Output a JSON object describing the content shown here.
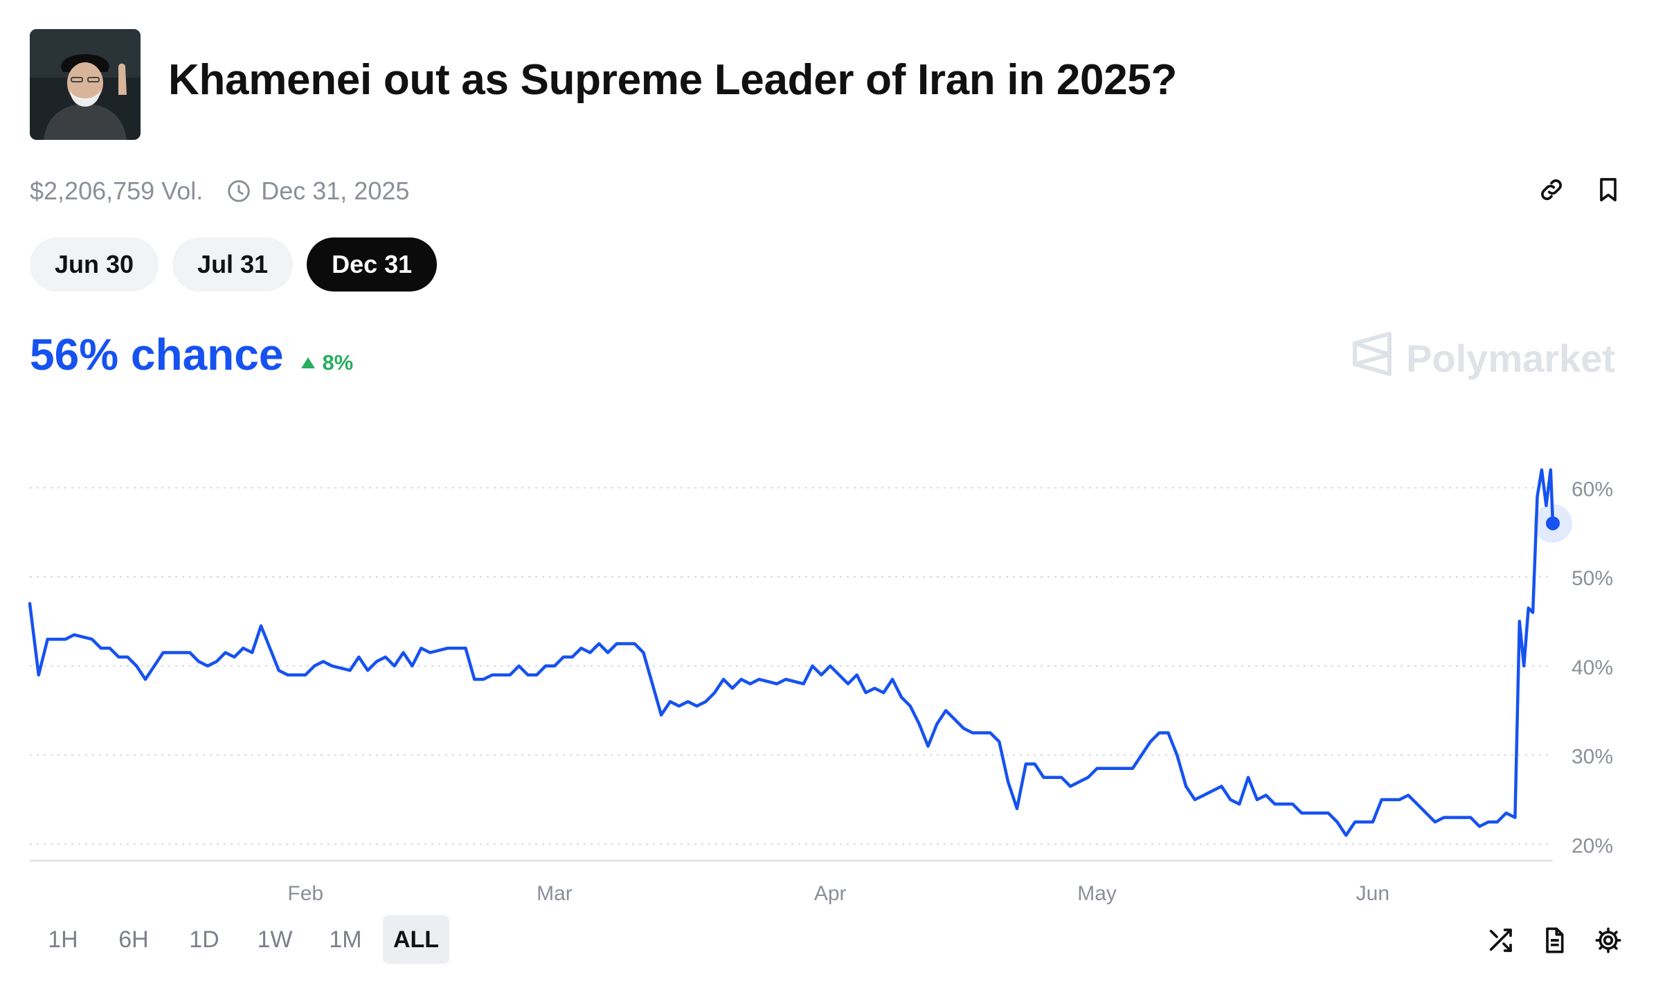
{
  "market": {
    "title": "Khamenei out as Supreme Leader of Iran in 2025?",
    "volume": "$2,206,759 Vol.",
    "end_date": "Dec 31, 2025"
  },
  "date_tabs": [
    {
      "label": "Jun 30",
      "active": false
    },
    {
      "label": "Jul 31",
      "active": false
    },
    {
      "label": "Dec 31",
      "active": true
    }
  ],
  "chance": {
    "value": "56% chance",
    "change": "8%",
    "change_color": "#27ae60"
  },
  "brand": {
    "name": "Polymarket"
  },
  "range_tabs": [
    {
      "label": "1H",
      "active": false
    },
    {
      "label": "6H",
      "active": false
    },
    {
      "label": "1D",
      "active": false
    },
    {
      "label": "1W",
      "active": false
    },
    {
      "label": "1M",
      "active": false
    },
    {
      "label": "ALL",
      "active": true
    }
  ],
  "icons": {
    "top": [
      "link-icon",
      "bookmark-icon"
    ],
    "bottom": [
      "shuffle-icon",
      "document-icon",
      "settings-icon"
    ]
  },
  "colors": {
    "accent": "#1652f0",
    "positive": "#27ae60",
    "muted": "#8a8f98"
  },
  "chart_data": {
    "type": "line",
    "series": [
      {
        "color": "#1652f0",
        "points": [
          [
            "2025-01-01",
            47
          ],
          [
            "2025-01-02",
            39
          ],
          [
            "2025-01-03",
            43
          ],
          [
            "2025-01-05",
            43
          ],
          [
            "2025-01-06",
            43.5
          ],
          [
            "2025-01-08",
            43
          ],
          [
            "2025-01-09",
            42
          ],
          [
            "2025-01-10",
            42
          ],
          [
            "2025-01-11",
            41
          ],
          [
            "2025-01-12",
            41
          ],
          [
            "2025-01-13",
            40
          ],
          [
            "2025-01-14",
            38.5
          ],
          [
            "2025-01-15",
            40
          ],
          [
            "2025-01-16",
            41.5
          ],
          [
            "2025-01-19",
            41.5
          ],
          [
            "2025-01-20",
            40.5
          ],
          [
            "2025-01-21",
            40
          ],
          [
            "2025-01-22",
            40.5
          ],
          [
            "2025-01-23",
            41.5
          ],
          [
            "2025-01-24",
            41
          ],
          [
            "2025-01-25",
            42
          ],
          [
            "2025-01-26",
            41.5
          ],
          [
            "2025-01-27",
            44.5
          ],
          [
            "2025-01-28",
            42
          ],
          [
            "2025-01-29",
            39.5
          ],
          [
            "2025-01-30",
            39
          ],
          [
            "2025-02-01",
            39
          ],
          [
            "2025-02-02",
            40
          ],
          [
            "2025-02-03",
            40.5
          ],
          [
            "2025-02-04",
            40
          ],
          [
            "2025-02-06",
            39.5
          ],
          [
            "2025-02-07",
            41
          ],
          [
            "2025-02-08",
            39.5
          ],
          [
            "2025-02-09",
            40.5
          ],
          [
            "2025-02-10",
            41
          ],
          [
            "2025-02-11",
            40
          ],
          [
            "2025-02-12",
            41.5
          ],
          [
            "2025-02-13",
            40
          ],
          [
            "2025-02-14",
            42
          ],
          [
            "2025-02-15",
            41.5
          ],
          [
            "2025-02-17",
            42
          ],
          [
            "2025-02-19",
            42
          ],
          [
            "2025-02-20",
            38.5
          ],
          [
            "2025-02-21",
            38.5
          ],
          [
            "2025-02-22",
            39
          ],
          [
            "2025-02-24",
            39
          ],
          [
            "2025-02-25",
            40
          ],
          [
            "2025-02-26",
            39
          ],
          [
            "2025-02-27",
            39
          ],
          [
            "2025-02-28",
            40
          ],
          [
            "2025-03-01",
            40
          ],
          [
            "2025-03-02",
            41
          ],
          [
            "2025-03-03",
            41
          ],
          [
            "2025-03-04",
            42
          ],
          [
            "2025-03-05",
            41.5
          ],
          [
            "2025-03-06",
            42.5
          ],
          [
            "2025-03-07",
            41.5
          ],
          [
            "2025-03-08",
            42.5
          ],
          [
            "2025-03-10",
            42.5
          ],
          [
            "2025-03-11",
            41.5
          ],
          [
            "2025-03-12",
            38
          ],
          [
            "2025-03-13",
            34.5
          ],
          [
            "2025-03-14",
            36
          ],
          [
            "2025-03-15",
            35.5
          ],
          [
            "2025-03-16",
            36
          ],
          [
            "2025-03-17",
            35.5
          ],
          [
            "2025-03-18",
            36
          ],
          [
            "2025-03-19",
            37
          ],
          [
            "2025-03-20",
            38.5
          ],
          [
            "2025-03-21",
            37.5
          ],
          [
            "2025-03-22",
            38.5
          ],
          [
            "2025-03-23",
            38
          ],
          [
            "2025-03-24",
            38.5
          ],
          [
            "2025-03-26",
            38
          ],
          [
            "2025-03-27",
            38.5
          ],
          [
            "2025-03-29",
            38
          ],
          [
            "2025-03-30",
            40
          ],
          [
            "2025-03-31",
            39
          ],
          [
            "2025-04-01",
            40
          ],
          [
            "2025-04-02",
            39
          ],
          [
            "2025-04-03",
            38
          ],
          [
            "2025-04-04",
            39
          ],
          [
            "2025-04-05",
            37
          ],
          [
            "2025-04-06",
            37.5
          ],
          [
            "2025-04-07",
            37
          ],
          [
            "2025-04-08",
            38.5
          ],
          [
            "2025-04-09",
            36.5
          ],
          [
            "2025-04-10",
            35.5
          ],
          [
            "2025-04-11",
            33.5
          ],
          [
            "2025-04-12",
            31
          ],
          [
            "2025-04-13",
            33.5
          ],
          [
            "2025-04-14",
            35
          ],
          [
            "2025-04-15",
            34
          ],
          [
            "2025-04-16",
            33
          ],
          [
            "2025-04-17",
            32.5
          ],
          [
            "2025-04-19",
            32.5
          ],
          [
            "2025-04-20",
            31.5
          ],
          [
            "2025-04-21",
            27
          ],
          [
            "2025-04-22",
            24
          ],
          [
            "2025-04-23",
            29
          ],
          [
            "2025-04-24",
            29
          ],
          [
            "2025-04-25",
            27.5
          ],
          [
            "2025-04-27",
            27.5
          ],
          [
            "2025-04-28",
            26.5
          ],
          [
            "2025-04-29",
            27
          ],
          [
            "2025-04-30",
            27.5
          ],
          [
            "2025-05-01",
            28.5
          ],
          [
            "2025-05-03",
            28.5
          ],
          [
            "2025-05-05",
            28.5
          ],
          [
            "2025-05-07",
            31.5
          ],
          [
            "2025-05-08",
            32.5
          ],
          [
            "2025-05-09",
            32.5
          ],
          [
            "2025-05-10",
            30
          ],
          [
            "2025-05-11",
            26.5
          ],
          [
            "2025-05-12",
            25
          ],
          [
            "2025-05-13",
            25.5
          ],
          [
            "2025-05-14",
            26
          ],
          [
            "2025-05-15",
            26.5
          ],
          [
            "2025-05-16",
            25
          ],
          [
            "2025-05-17",
            24.5
          ],
          [
            "2025-05-18",
            27.5
          ],
          [
            "2025-05-19",
            25
          ],
          [
            "2025-05-20",
            25.5
          ],
          [
            "2025-05-21",
            24.5
          ],
          [
            "2025-05-23",
            24.5
          ],
          [
            "2025-05-24",
            23.5
          ],
          [
            "2025-05-27",
            23.5
          ],
          [
            "2025-05-28",
            22.5
          ],
          [
            "2025-05-29",
            21
          ],
          [
            "2025-05-30",
            22.5
          ],
          [
            "2025-06-01",
            22.5
          ],
          [
            "2025-06-02",
            25
          ],
          [
            "2025-06-04",
            25
          ],
          [
            "2025-06-05",
            25.5
          ],
          [
            "2025-06-06",
            24.5
          ],
          [
            "2025-06-07",
            23.5
          ],
          [
            "2025-06-08",
            22.5
          ],
          [
            "2025-06-09",
            23
          ],
          [
            "2025-06-10",
            23
          ],
          [
            "2025-06-12",
            23
          ],
          [
            "2025-06-13",
            22
          ],
          [
            "2025-06-14",
            22.5
          ],
          [
            "2025-06-15",
            22.5
          ],
          [
            "2025-06-16",
            23.5
          ],
          [
            "2025-06-17",
            23
          ],
          [
            "2025-06-17T12:00",
            45
          ],
          [
            "2025-06-18",
            40
          ],
          [
            "2025-06-18T12:00",
            46.5
          ],
          [
            "2025-06-19",
            46
          ],
          [
            "2025-06-19T12:00",
            59
          ],
          [
            "2025-06-20",
            62
          ],
          [
            "2025-06-20T12:00",
            58
          ],
          [
            "2025-06-21",
            62
          ],
          [
            "2025-06-21T06:00",
            56
          ]
        ]
      }
    ],
    "current": {
      "x": "2025-06-21T06:00",
      "y": 56
    },
    "x_ticks": [
      "Feb",
      "Mar",
      "Apr",
      "May",
      "Jun"
    ],
    "x_tick_values": [
      "2025-02-01",
      "2025-03-01",
      "2025-04-01",
      "2025-05-01",
      "2025-06-01"
    ],
    "y_ticks": [
      20,
      30,
      40,
      50,
      60
    ],
    "y_tick_labels": [
      "20%",
      "30%",
      "40%",
      "50%",
      "60%"
    ],
    "xlim": [
      "2025-01-01",
      "2025-06-21T06:00"
    ],
    "ylim": [
      18,
      65
    ],
    "grid": true
  }
}
